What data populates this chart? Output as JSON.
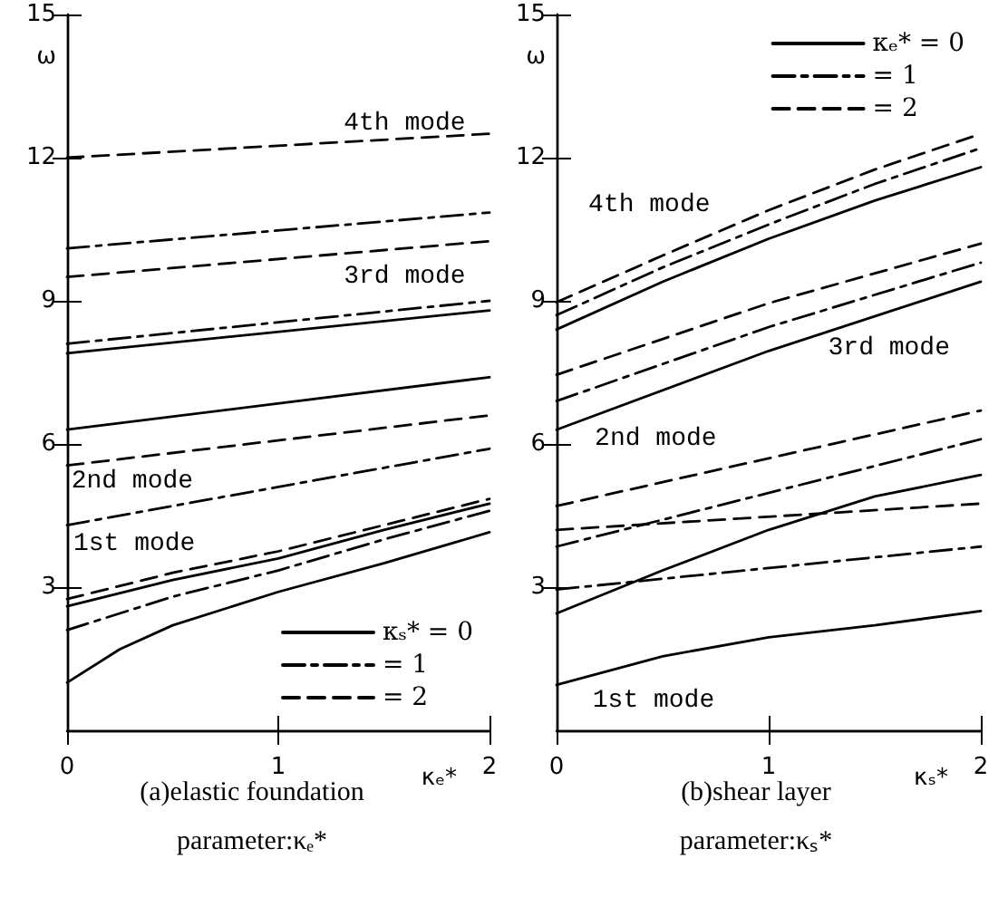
{
  "chart_data": [
    {
      "type": "line",
      "title": "(a)elastic foundation",
      "subtitle": "parameter:κₑ*",
      "xlabel": "κₑ*",
      "ylabel": "ω",
      "xlim": [
        0,
        2
      ],
      "xticks": [
        0,
        1,
        2
      ],
      "ylim": [
        0,
        15
      ],
      "yticks": [
        3,
        6,
        9,
        12,
        15
      ],
      "grid": false,
      "legend": "bottom right",
      "marker": "none",
      "annotations": [
        "4th mode",
        "3rd mode",
        "2nd mode",
        "1st mode"
      ],
      "series": [
        {
          "name": "κₛ* = 0",
          "color": "#000000",
          "line_style": "solid",
          "x": [
            0,
            2
          ],
          "values": [
            7.9,
            8.8
          ]
        },
        {
          "name": "= 1",
          "color": "#000000",
          "line_style": "dashdot",
          "x": [
            0,
            2
          ],
          "values": [
            10.1,
            10.85
          ]
        },
        {
          "name": "= 2",
          "color": "#000000",
          "line_style": "dashed",
          "x": [
            0,
            2
          ],
          "values": [
            12.0,
            12.5
          ]
        },
        {
          "color": "#000000",
          "line_style": "dashed",
          "x": [
            0,
            2
          ],
          "values": [
            9.5,
            10.25
          ]
        },
        {
          "color": "#000000",
          "line_style": "dashdot",
          "x": [
            0,
            2
          ],
          "values": [
            8.1,
            9.0
          ]
        },
        {
          "color": "#000000",
          "line_style": "solid",
          "x": [
            0,
            2
          ],
          "values": [
            6.3,
            7.4
          ]
        },
        {
          "color": "#000000",
          "line_style": "dashed",
          "x": [
            0,
            2
          ],
          "values": [
            5.55,
            6.6
          ]
        },
        {
          "color": "#000000",
          "line_style": "dashdot",
          "x": [
            0,
            2
          ],
          "values": [
            4.3,
            5.9
          ]
        },
        {
          "color": "#000000",
          "line_style": "dashed",
          "x": [
            0,
            0.5,
            1,
            1.5,
            2
          ],
          "values": [
            2.75,
            3.3,
            3.75,
            4.3,
            4.85
          ]
        },
        {
          "color": "#000000",
          "line_style": "solid",
          "x": [
            0,
            0.5,
            1,
            1.5,
            2
          ],
          "values": [
            2.6,
            3.15,
            3.6,
            4.2,
            4.75
          ]
        },
        {
          "color": "#000000",
          "line_style": "dashdot",
          "x": [
            0,
            0.5,
            1,
            1.5,
            2
          ],
          "values": [
            2.1,
            2.8,
            3.35,
            4.0,
            4.6
          ]
        },
        {
          "color": "#000000",
          "line_style": "solid",
          "x": [
            0,
            0.25,
            0.5,
            1,
            1.5,
            2
          ],
          "values": [
            1.0,
            1.7,
            2.2,
            2.9,
            3.5,
            4.15
          ]
        }
      ]
    },
    {
      "type": "line",
      "title": "(b)shear layer",
      "subtitle": "parameter:κₛ*",
      "xlabel": "κₛ*",
      "ylabel": "ω",
      "xlim": [
        0,
        2
      ],
      "xticks": [
        0,
        1,
        2
      ],
      "ylim": [
        0,
        15
      ],
      "yticks": [
        3,
        6,
        9,
        12,
        15
      ],
      "grid": false,
      "legend": "top right",
      "marker": "none",
      "annotations": [
        "4th mode",
        "3rd mode",
        "2nd mode",
        "1st mode"
      ],
      "series": [
        {
          "name": "κₑ* = 0",
          "color": "#000000",
          "line_style": "solid",
          "x": [
            0,
            0.5,
            1,
            1.5,
            2
          ],
          "values": [
            8.4,
            9.4,
            10.3,
            11.1,
            11.8
          ]
        },
        {
          "name": "= 1",
          "color": "#000000",
          "line_style": "dashdot",
          "x": [
            0,
            0.5,
            1,
            1.5,
            2
          ],
          "values": [
            8.7,
            9.7,
            10.6,
            11.45,
            12.2
          ]
        },
        {
          "name": "= 2",
          "color": "#000000",
          "line_style": "dashed",
          "x": [
            0,
            0.5,
            1,
            1.5,
            2
          ],
          "values": [
            8.97,
            9.95,
            10.9,
            11.75,
            12.5
          ]
        },
        {
          "color": "#000000",
          "line_style": "dashed",
          "x": [
            0,
            1,
            2
          ],
          "values": [
            7.45,
            8.95,
            10.2
          ]
        },
        {
          "color": "#000000",
          "line_style": "dashdot",
          "x": [
            0,
            1,
            2
          ],
          "values": [
            6.9,
            8.45,
            9.8
          ]
        },
        {
          "color": "#000000",
          "line_style": "solid",
          "x": [
            0,
            1,
            2
          ],
          "values": [
            6.3,
            7.95,
            9.4
          ]
        },
        {
          "color": "#000000",
          "line_style": "dashed",
          "x": [
            0,
            2
          ],
          "values": [
            4.7,
            6.7
          ]
        },
        {
          "color": "#000000",
          "line_style": "dashdot",
          "x": [
            0,
            2
          ],
          "values": [
            3.85,
            6.1
          ]
        },
        {
          "color": "#000000",
          "line_style": "dashed",
          "x": [
            0,
            2
          ],
          "values": [
            4.2,
            4.75
          ]
        },
        {
          "color": "#000000",
          "line_style": "solid",
          "x": [
            0,
            0.5,
            1,
            1.5,
            2
          ],
          "values": [
            2.45,
            3.35,
            4.2,
            4.9,
            5.35
          ]
        },
        {
          "color": "#000000",
          "line_style": "dashdot",
          "x": [
            0,
            2
          ],
          "values": [
            2.95,
            3.85
          ]
        },
        {
          "color": "#000000",
          "line_style": "solid",
          "x": [
            0,
            0.5,
            1,
            1.5,
            2
          ],
          "values": [
            0.95,
            1.55,
            1.95,
            2.2,
            2.5
          ]
        }
      ]
    }
  ]
}
